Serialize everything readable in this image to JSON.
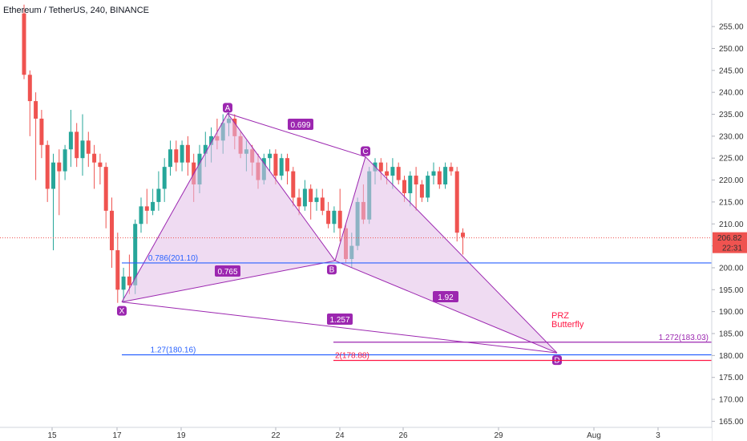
{
  "header": {
    "title": "Ethereum / TetherUS, 240, BINANCE"
  },
  "colors": {
    "up": "#26a69a",
    "down": "#ef5350",
    "pattern_line": "#9c27b0",
    "pattern_fill": "#e1bee7",
    "label_bg": "#9c27b0",
    "blue_line": "#2962ff",
    "red_line": "#ff1744",
    "price_tag": "#ef5350"
  },
  "price_axis": {
    "ticks": [
      "255.00",
      "250.00",
      "245.00",
      "240.00",
      "235.00",
      "230.00",
      "225.00",
      "220.00",
      "215.00",
      "210.00",
      "205.00",
      "200.00",
      "195.00",
      "190.00",
      "185.00",
      "180.00",
      "175.00",
      "170.00",
      "165.00"
    ],
    "current_price": "206.82",
    "countdown": "22:31"
  },
  "time_axis": {
    "ticks": [
      "15",
      "17",
      "19",
      "22",
      "24",
      "26",
      "29",
      "Aug",
      "3"
    ]
  },
  "pattern": {
    "points": [
      {
        "label": "X",
        "price": 192.2
      },
      {
        "label": "A",
        "price": 235.2
      },
      {
        "label": "B",
        "price": 201.6
      },
      {
        "label": "C",
        "price": 225.3
      },
      {
        "label": "D",
        "price": 180.6
      }
    ],
    "ratios": [
      "0.699",
      "0.765",
      "1.92",
      "1.257"
    ]
  },
  "levels": [
    {
      "label": "0.786(201.10)",
      "price": 201.1
    },
    {
      "label": "1.27(180.16)",
      "price": 180.16
    },
    {
      "label": "1.272(183.03)",
      "price": 183.03
    },
    {
      "label": "2(178.88)",
      "price": 178.88
    }
  ],
  "annotation": {
    "line1": "PRZ",
    "line2": "Butterfly"
  },
  "chart_data": {
    "type": "candlestick",
    "title": "Ethereum / TetherUS, 240, BINANCE",
    "ylim": [
      162,
      258
    ],
    "grid": false,
    "candles": [
      [
        258,
        260,
        243,
        244
      ],
      [
        244,
        245,
        230,
        238
      ],
      [
        238,
        240,
        220,
        234
      ],
      [
        234,
        236,
        225,
        228
      ],
      [
        228,
        229,
        215,
        218
      ],
      [
        218,
        226,
        204,
        224
      ],
      [
        224,
        227,
        212,
        222
      ],
      [
        222,
        228,
        220,
        227
      ],
      [
        227,
        236,
        223,
        231
      ],
      [
        231,
        233,
        223,
        225
      ],
      [
        225,
        235,
        221,
        229
      ],
      [
        229,
        231,
        223,
        226
      ],
      [
        226,
        228,
        218,
        224
      ],
      [
        224,
        226,
        219,
        223
      ],
      [
        223,
        224,
        209,
        213
      ],
      [
        213,
        216,
        200,
        204
      ],
      [
        204,
        208,
        192,
        195
      ],
      [
        195,
        200,
        192,
        198
      ],
      [
        198,
        203,
        194,
        196
      ],
      [
        196,
        211,
        194,
        210
      ],
      [
        210,
        216,
        208,
        214
      ],
      [
        214,
        218,
        210,
        213
      ],
      [
        213,
        218,
        212,
        215
      ],
      [
        215,
        222,
        213,
        218
      ],
      [
        218,
        225,
        215,
        223
      ],
      [
        223,
        229,
        221,
        227
      ],
      [
        227,
        229,
        222,
        224
      ],
      [
        224,
        229,
        222,
        228
      ],
      [
        228,
        230,
        221,
        224
      ],
      [
        224,
        226,
        215,
        219
      ],
      [
        219,
        228,
        217,
        226
      ],
      [
        226,
        231,
        223,
        228
      ],
      [
        228,
        232,
        224,
        230
      ],
      [
        230,
        234,
        227,
        229
      ],
      [
        229,
        235,
        226,
        233
      ],
      [
        233,
        236,
        230,
        234
      ],
      [
        234,
        235,
        227,
        230
      ],
      [
        230,
        231,
        225,
        226
      ],
      [
        226,
        229,
        222,
        227
      ],
      [
        227,
        228,
        221,
        224
      ],
      [
        224,
        226,
        218,
        220
      ],
      [
        220,
        226,
        219,
        225
      ],
      [
        225,
        227,
        222,
        226
      ],
      [
        226,
        227,
        219,
        221
      ],
      [
        221,
        226,
        220,
        225
      ],
      [
        225,
        226,
        219,
        222
      ],
      [
        222,
        223,
        214,
        216
      ],
      [
        216,
        218,
        212,
        214
      ],
      [
        214,
        220,
        213,
        218
      ],
      [
        218,
        219,
        211,
        215
      ],
      [
        215,
        218,
        213,
        216
      ],
      [
        216,
        218,
        212,
        213
      ],
      [
        213,
        215,
        209,
        210
      ],
      [
        210,
        214,
        208,
        213
      ],
      [
        213,
        218,
        206,
        209
      ],
      [
        209,
        210,
        201,
        202
      ],
      [
        202,
        208,
        200,
        205
      ],
      [
        205,
        216,
        204,
        215
      ],
      [
        215,
        219,
        210,
        211
      ],
      [
        211,
        223,
        210,
        222
      ],
      [
        222,
        225,
        219,
        224
      ],
      [
        224,
        225,
        220,
        222
      ],
      [
        222,
        224,
        219,
        221
      ],
      [
        221,
        225,
        218,
        223
      ],
      [
        223,
        224,
        219,
        220
      ],
      [
        220,
        221,
        215,
        217
      ],
      [
        217,
        222,
        214,
        221
      ],
      [
        221,
        223,
        213,
        219
      ],
      [
        219,
        220,
        215,
        216
      ],
      [
        216,
        222,
        215,
        221
      ],
      [
        221,
        224,
        219,
        222
      ],
      [
        222,
        223,
        218,
        219
      ],
      [
        219,
        224,
        218,
        223
      ],
      [
        223,
        224,
        221,
        222
      ],
      [
        222,
        223,
        206,
        208
      ],
      [
        208,
        209,
        203,
        207
      ]
    ]
  }
}
